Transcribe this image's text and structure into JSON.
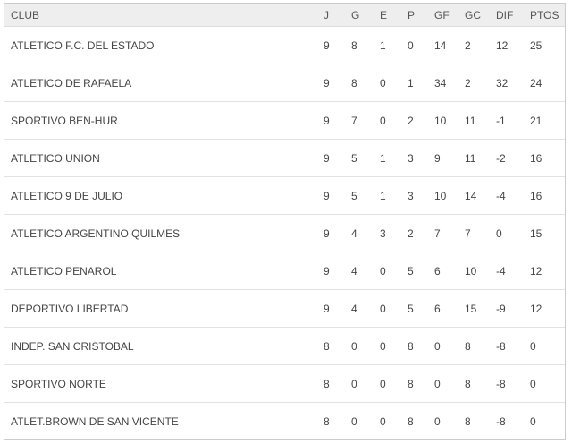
{
  "headers": [
    "CLUB",
    "J",
    "G",
    "E",
    "P",
    "GF",
    "GC",
    "DIF",
    "PTOS"
  ],
  "rows": [
    [
      "ATLETICO F.C. DEL ESTADO",
      "9",
      "8",
      "1",
      "0",
      "14",
      "2",
      "12",
      "25"
    ],
    [
      "ATLETICO DE RAFAELA",
      "9",
      "8",
      "0",
      "1",
      "34",
      "2",
      "32",
      "24"
    ],
    [
      "SPORTIVO BEN-HUR",
      "9",
      "7",
      "0",
      "2",
      "10",
      "11",
      "-1",
      "21"
    ],
    [
      "ATLETICO UNION",
      "9",
      "5",
      "1",
      "3",
      "9",
      "11",
      "-2",
      "16"
    ],
    [
      "ATLETICO 9 DE JULIO",
      "9",
      "5",
      "1",
      "3",
      "10",
      "14",
      "-4",
      "16"
    ],
    [
      "ATLETICO ARGENTINO QUILMES",
      "9",
      "4",
      "3",
      "2",
      "7",
      "7",
      "0",
      "15"
    ],
    [
      "ATLETICO PENAROL",
      "9",
      "4",
      "0",
      "5",
      "6",
      "10",
      "-4",
      "12"
    ],
    [
      "DEPORTIVO LIBERTAD",
      "9",
      "4",
      "0",
      "5",
      "6",
      "15",
      "-9",
      "12"
    ],
    [
      "INDEP. SAN CRISTOBAL",
      "8",
      "0",
      "0",
      "8",
      "0",
      "8",
      "-8",
      "0"
    ],
    [
      "SPORTIVO NORTE",
      "8",
      "0",
      "0",
      "8",
      "0",
      "8",
      "-8",
      "0"
    ],
    [
      "ATLET.BROWN DE SAN VICENTE",
      "8",
      "0",
      "0",
      "8",
      "0",
      "8",
      "-8",
      "0"
    ]
  ]
}
